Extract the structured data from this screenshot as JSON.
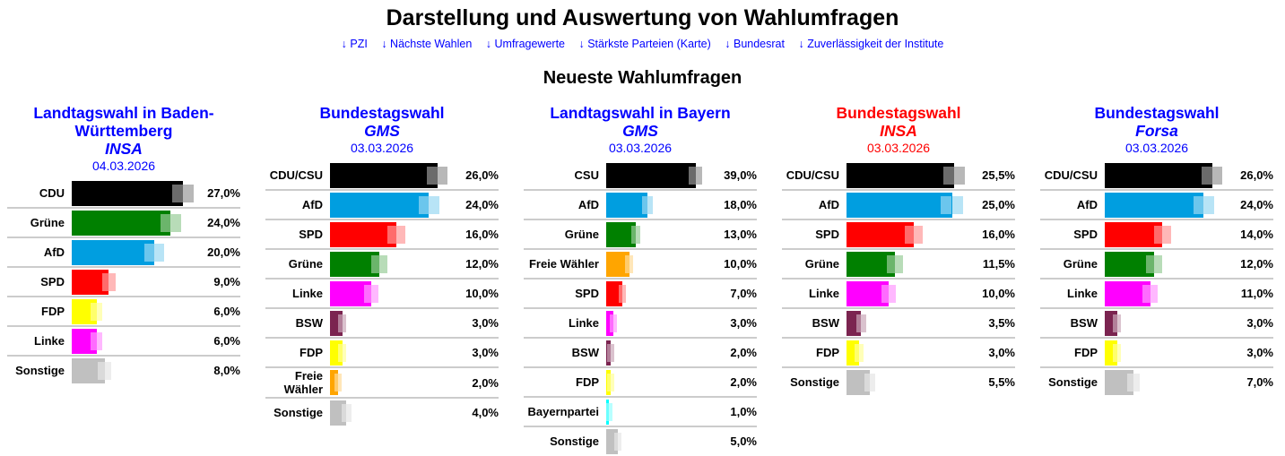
{
  "header": {
    "title": "Darstellung und Auswertung von Wahlumfragen",
    "links": [
      "↓ PZI",
      "↓ Nächste Wahlen",
      "↓ Umfragewerte",
      "↓ Stärkste Parteien (Karte)",
      "↓ Bundesrat",
      "↓ Zuverlässigkeit der Institute"
    ],
    "subtitle": "Neueste Wahlumfragen"
  },
  "colors": {
    "CDU": "#000000",
    "CDU/CSU": "#000000",
    "CSU": "#000000",
    "Grüne": "#008000",
    "AfD": "#009ee0",
    "SPD": "#ff0000",
    "FDP": "#ffff00",
    "Linke": "#ff00ff",
    "Sonstige": "#c0c0c0",
    "BSW": "#7b2450",
    "Freie Wähler": "#ffa500",
    "Bayernpartei": "#00ffff",
    "title_blue": "#0000ff",
    "title_red": "#ff0000"
  },
  "chart_data": [
    {
      "type": "bar",
      "title": "Landtagswahl in Baden-Württemberg",
      "institute": "INSA",
      "date": "04.03.2026",
      "title_color": "#0000ff",
      "categories": [
        "CDU",
        "Grüne",
        "AfD",
        "SPD",
        "FDP",
        "Linke",
        "Sonstige"
      ],
      "values": [
        27,
        24,
        20,
        9,
        6,
        6,
        8
      ],
      "labels": [
        "27,0%",
        "24,0%",
        "20,0%",
        "9,0%",
        "6,0%",
        "6,0%",
        "8,0%"
      ]
    },
    {
      "type": "bar",
      "title": "Bundestagswahl",
      "institute": "GMS",
      "date": "03.03.2026",
      "title_color": "#0000ff",
      "categories": [
        "CDU/CSU",
        "AfD",
        "SPD",
        "Grüne",
        "Linke",
        "BSW",
        "FDP",
        "Freie Wähler",
        "Sonstige"
      ],
      "values": [
        26,
        24,
        16,
        12,
        10,
        3,
        3,
        2,
        4
      ],
      "labels": [
        "26,0%",
        "24,0%",
        "16,0%",
        "12,0%",
        "10,0%",
        "3,0%",
        "3,0%",
        "2,0%",
        "4,0%"
      ]
    },
    {
      "type": "bar",
      "title": "Landtagswahl in Bayern",
      "institute": "GMS",
      "date": "03.03.2026",
      "title_color": "#0000ff",
      "categories": [
        "CSU",
        "AfD",
        "Grüne",
        "Freie Wähler",
        "SPD",
        "Linke",
        "BSW",
        "FDP",
        "Bayernpartei",
        "Sonstige"
      ],
      "values": [
        39,
        18,
        13,
        10,
        7,
        3,
        2,
        2,
        1,
        5
      ],
      "labels": [
        "39,0%",
        "18,0%",
        "13,0%",
        "10,0%",
        "7,0%",
        "3,0%",
        "2,0%",
        "2,0%",
        "1,0%",
        "5,0%"
      ]
    },
    {
      "type": "bar",
      "title": "Bundestagswahl",
      "institute": "INSA",
      "date": "03.03.2026",
      "title_color": "#ff0000",
      "categories": [
        "CDU/CSU",
        "AfD",
        "SPD",
        "Grüne",
        "Linke",
        "BSW",
        "FDP",
        "Sonstige"
      ],
      "values": [
        25.5,
        25,
        16,
        11.5,
        10,
        3.5,
        3,
        5.5
      ],
      "labels": [
        "25,5%",
        "25,0%",
        "16,0%",
        "11,5%",
        "10,0%",
        "3,5%",
        "3,0%",
        "5,5%"
      ]
    },
    {
      "type": "bar",
      "title": "Bundestagswahl",
      "institute": "Forsa",
      "date": "03.03.2026",
      "title_color": "#0000ff",
      "categories": [
        "CDU/CSU",
        "AfD",
        "SPD",
        "Grüne",
        "Linke",
        "BSW",
        "FDP",
        "Sonstige"
      ],
      "values": [
        26,
        24,
        14,
        12,
        11,
        3,
        3,
        7
      ],
      "labels": [
        "26,0%",
        "24,0%",
        "14,0%",
        "12,0%",
        "11,0%",
        "3,0%",
        "3,0%",
        "7,0%"
      ]
    }
  ]
}
